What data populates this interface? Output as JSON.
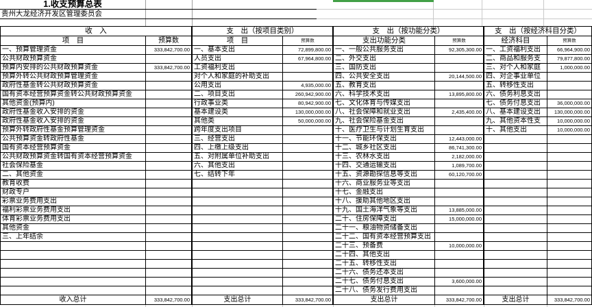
{
  "meta": {
    "title": "1.收支预算总表",
    "org": "贵州大龙经济开发区管理委员会"
  },
  "colors": {
    "selection_green": "#43a047",
    "grid_gray": "#c9c9c9",
    "table_border": "#000000"
  },
  "sections": [
    {
      "header": "收　入",
      "item_header": "项　目",
      "budget_header": "预算数",
      "total_label": "收入总计",
      "total_value": "333,842,700.00",
      "rows": [
        [
          "一、预算管理资金",
          "333,842,700.00"
        ],
        [
          "公共财政预算资金",
          ""
        ],
        [
          "预算内安排的公共财政预算资金",
          "333,842,700.00"
        ],
        [
          "预算外转公共财政预算管理资金",
          ""
        ],
        [
          "政府性基金转公共财政预算资金",
          ""
        ],
        [
          "国有资本经营预算资金转公共财政预算资金",
          ""
        ],
        [
          "其他资金(预算内)",
          ""
        ],
        [
          "政府性基金收入安排的资金",
          ""
        ],
        [
          "政府性基金收入安排的资金",
          ""
        ],
        [
          "预算外转政府性基金预算管理资金",
          ""
        ],
        [
          "公共预算资金转政府性基金",
          ""
        ],
        [
          "国有资本经营预算资金",
          ""
        ],
        [
          "公共财政预算资金转国有资本经营预算资金",
          ""
        ],
        [
          "社会保险基金",
          ""
        ],
        [
          "二、其他资金",
          ""
        ],
        [
          "教育收费",
          ""
        ],
        [
          "财政专户",
          ""
        ],
        [
          "彩票业务费用支出",
          ""
        ],
        [
          "福利彩票业务费用支出",
          ""
        ],
        [
          "体育彩票业务费用支出",
          ""
        ],
        [
          "其他资金",
          ""
        ],
        [
          "三、上年结余",
          ""
        ],
        [
          "",
          ""
        ],
        [
          "",
          ""
        ],
        [
          "",
          ""
        ],
        [
          "",
          ""
        ],
        [
          "",
          ""
        ],
        [
          "",
          ""
        ]
      ]
    },
    {
      "header": "支　出（按项目类别）",
      "item_header": "项　目",
      "budget_header": "预算数",
      "total_label": "支出总计",
      "total_value": "333,842,700.00",
      "rows": [
        [
          "一、基本支出",
          "72,899,800.00"
        ],
        [
          "人员支出",
          "67,964,800.00"
        ],
        [
          "工资福利支出",
          ""
        ],
        [
          "对个人和家庭的补助支出",
          ""
        ],
        [
          "公用支出",
          "4,935,000.00"
        ],
        [
          "二、项目支出",
          "260,942,900.00"
        ],
        [
          "行政事业类",
          "80,942,900.00"
        ],
        [
          "基本建设类",
          "130,000,000.00"
        ],
        [
          "其他类",
          "50,000,000.00"
        ],
        [
          "跨年度支出项目",
          ""
        ],
        [
          "三、经营支出",
          ""
        ],
        [
          "四、上缴上级支出",
          ""
        ],
        [
          "五、对附属单位补助支出",
          ""
        ],
        [
          "六、其他支出",
          ""
        ],
        [
          "七、结转下年",
          ""
        ],
        [
          "",
          ""
        ],
        [
          "",
          ""
        ],
        [
          "",
          ""
        ],
        [
          "",
          ""
        ],
        [
          "",
          ""
        ],
        [
          "",
          ""
        ],
        [
          "",
          ""
        ],
        [
          "",
          ""
        ],
        [
          "",
          ""
        ],
        [
          "",
          ""
        ],
        [
          "",
          ""
        ],
        [
          "",
          ""
        ],
        [
          "",
          ""
        ]
      ]
    },
    {
      "header": "支　出（按功能分类）",
      "item_header": "支出功能分类",
      "budget_header": "预算数",
      "total_label": "支出总计",
      "total_value": "333,842,700.00",
      "rows": [
        [
          "一、一般公共服务支出",
          "92,305,300.00"
        ],
        [
          "二、外交支出",
          ""
        ],
        [
          "三、国防支出",
          ""
        ],
        [
          "四、公共安全支出",
          "20,144,500.00"
        ],
        [
          "五、教育支出",
          ""
        ],
        [
          "六、科学技术支出",
          "13,895,800.00"
        ],
        [
          "七、文化体育与传媒支出",
          ""
        ],
        [
          "八、社会保障和就业支出",
          "2,435,400.00"
        ],
        [
          "九、社会保险基金支出",
          ""
        ],
        [
          "十、医疗卫生与计划生育支出",
          ""
        ],
        [
          "十一、节能环保支出",
          "12,443,000.00"
        ],
        [
          "十二、城乡社区支出",
          "86,741,300.00"
        ],
        [
          "十三、农林水支出",
          "2,182,000.00"
        ],
        [
          "十四、交通运输支出",
          "1,089,700.00"
        ],
        [
          "十五、资源勘探信息等支出",
          "60,120,700.00"
        ],
        [
          "十六、商业服务业等支出",
          ""
        ],
        [
          "十七、金融支出",
          ""
        ],
        [
          "十八、援助其他地区支出",
          ""
        ],
        [
          "十九、国土海洋气象等支出",
          "13,885,000.00"
        ],
        [
          "二十、住房保障支出",
          "15,000,000.00"
        ],
        [
          "二十一、粮油物资储备支出",
          ""
        ],
        [
          "二十二、国有资本经营预算支出",
          ""
        ],
        [
          "二十三、预备费",
          "10,000,000.00"
        ],
        [
          "二十四、其他支出",
          ""
        ],
        [
          "二十五、转移性支出",
          ""
        ],
        [
          "二十六、债务还本支出",
          ""
        ],
        [
          "二十七、债务付息支出",
          "3,600,000.00"
        ],
        [
          "二十八、债务发行费用支出",
          ""
        ]
      ]
    },
    {
      "header": "支　出（按经济科目分类）",
      "item_header": "经济科目",
      "budget_header": "预算数",
      "total_label": "支出总计",
      "total_value": "333,842,700.00",
      "rows": [
        [
          "一、工资福利支出",
          "66,964,900.00"
        ],
        [
          "二、商品和服务支",
          "79,877,800.00"
        ],
        [
          "三、对个人和家庭",
          "1,000,000.00"
        ],
        [
          "四、对企事业单位",
          ""
        ],
        [
          "五、转移性支出",
          ""
        ],
        [
          "六、债务利息支出",
          ""
        ],
        [
          "七、债务付息支出",
          "36,000,000.00"
        ],
        [
          "八、基本建设支出",
          "130,000,000.00"
        ],
        [
          "九、其他资本性支",
          "10,000,000.00"
        ],
        [
          "十、其他支出",
          "10,000,000.00"
        ],
        [
          "",
          ""
        ],
        [
          "",
          ""
        ],
        [
          "",
          ""
        ],
        [
          "",
          ""
        ],
        [
          "",
          ""
        ],
        [
          "",
          ""
        ],
        [
          "",
          ""
        ],
        [
          "",
          ""
        ],
        [
          "",
          ""
        ],
        [
          "",
          ""
        ],
        [
          "",
          ""
        ],
        [
          "",
          ""
        ],
        [
          "",
          ""
        ],
        [
          "",
          ""
        ],
        [
          "",
          ""
        ],
        [
          "",
          ""
        ],
        [
          "",
          ""
        ],
        [
          "",
          ""
        ]
      ]
    }
  ]
}
